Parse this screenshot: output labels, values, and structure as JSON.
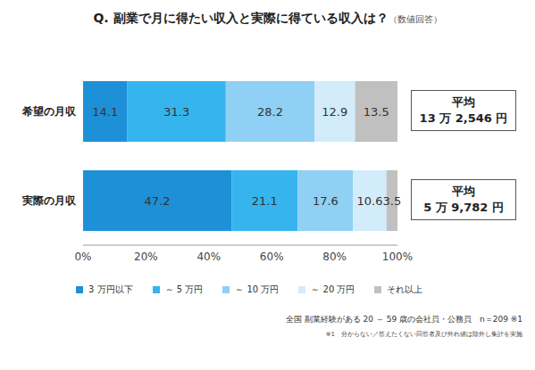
{
  "chart_data": {
    "type": "bar",
    "orientation": "horizontal",
    "stacked": true,
    "data_labels": true,
    "grid": false,
    "legend": "bottom",
    "title": "Q. 副業で月に得たい収入と実際に得ている収入は？",
    "subtitle": "（数値回答）",
    "categories": [
      "希望の月収",
      "実際の月収"
    ],
    "series": [
      {
        "name": "3 万円以下",
        "color": "#1e90d8",
        "values": [
          14.1,
          47.2
        ]
      },
      {
        "name": "～ 5 万円",
        "color": "#36b4ee",
        "values": [
          31.3,
          21.1
        ]
      },
      {
        "name": "～ 10 万円",
        "color": "#8fd0f4",
        "values": [
          28.2,
          17.6
        ]
      },
      {
        "name": "～ 20 万円",
        "color": "#d2ecfb",
        "values": [
          12.9,
          10.6
        ]
      },
      {
        "name": "それ以上",
        "color": "#c0c0c0",
        "values": [
          13.5,
          3.5
        ]
      }
    ],
    "xlim": [
      0,
      100
    ],
    "xticks": [
      {
        "value": 0,
        "label": "0%"
      },
      {
        "value": 20,
        "label": "20%"
      },
      {
        "value": 40,
        "label": "40%"
      },
      {
        "value": 60,
        "label": "60%"
      },
      {
        "value": 80,
        "label": "80%"
      },
      {
        "value": 100,
        "label": "100%"
      }
    ],
    "annotations": [
      {
        "category": "希望の月収",
        "lines": [
          "平均",
          "13 万 2,546 円"
        ]
      },
      {
        "category": "実際の月収",
        "lines": [
          "平均",
          "5 万 9,782 円"
        ]
      }
    ],
    "notes": [
      "全国 副業経験がある 20 ～ 59 歳の会社員・公務員　n＝209 ※1",
      "※1　分からない／答えたくない回答者及び外れ値は除外し集計を実施"
    ]
  }
}
